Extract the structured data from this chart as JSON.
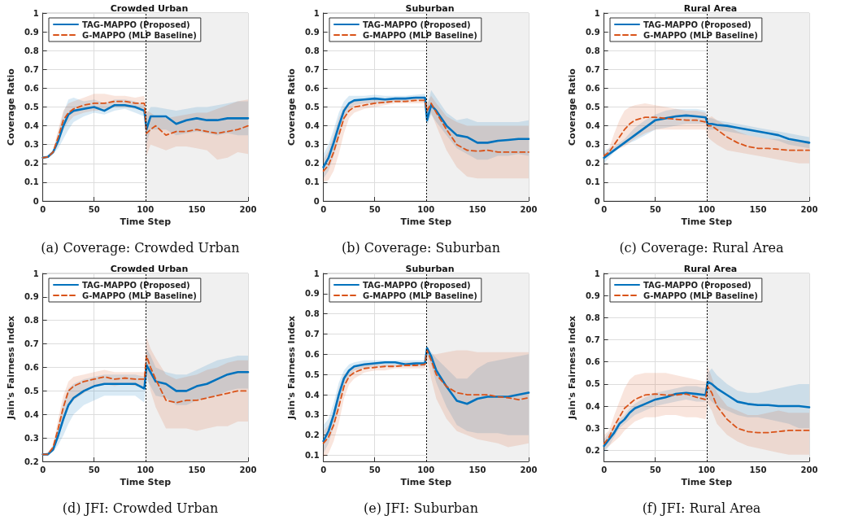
{
  "chart_data": [
    {
      "type": "line",
      "title": "Crowded Urban",
      "xlabel": "Time Step",
      "ylabel": "Coverage Ratio",
      "annotations": [
        "(a) Coverage: Crowded Urban"
      ],
      "xlim": [
        0,
        200
      ],
      "xticks": [
        0,
        50,
        100,
        150,
        200
      ],
      "ylim": [
        0,
        1
      ],
      "yticks": [
        0,
        0.1,
        0.2,
        0.3,
        0.4,
        0.5,
        0.6,
        0.7,
        0.8,
        0.9,
        1
      ],
      "grid": true,
      "legend": "top left",
      "marker": "none",
      "x": [
        0,
        5,
        10,
        15,
        20,
        25,
        30,
        40,
        50,
        60,
        70,
        80,
        90,
        99,
        101,
        105,
        110,
        120,
        130,
        140,
        150,
        160,
        170,
        180,
        190,
        200
      ],
      "ref_lines": [
        {
          "axis": "x",
          "value": 100,
          "color": "#000000",
          "line_style": "dotted"
        }
      ],
      "bands": [
        {
          "axis": "x",
          "from": 100,
          "to": 200,
          "color": "#f0f0f0"
        }
      ],
      "series": [
        {
          "name": "TAG-MAPPO (Proposed)",
          "color": "#0072bd",
          "line_style": "solid",
          "values": [
            0.23,
            0.235,
            0.26,
            0.32,
            0.4,
            0.46,
            0.48,
            0.49,
            0.5,
            0.48,
            0.51,
            0.51,
            0.5,
            0.48,
            0.38,
            0.45,
            0.45,
            0.45,
            0.41,
            0.43,
            0.44,
            0.43,
            0.43,
            0.44,
            0.44,
            0.44
          ],
          "lower": [
            0.23,
            0.23,
            0.25,
            0.28,
            0.33,
            0.38,
            0.42,
            0.45,
            0.47,
            0.46,
            0.48,
            0.49,
            0.47,
            0.45,
            0.3,
            0.38,
            0.38,
            0.38,
            0.35,
            0.36,
            0.37,
            0.36,
            0.35,
            0.36,
            0.35,
            0.35
          ],
          "upper": [
            0.23,
            0.24,
            0.27,
            0.36,
            0.47,
            0.54,
            0.55,
            0.53,
            0.54,
            0.52,
            0.54,
            0.54,
            0.53,
            0.51,
            0.46,
            0.5,
            0.5,
            0.49,
            0.48,
            0.49,
            0.5,
            0.5,
            0.51,
            0.52,
            0.53,
            0.53
          ]
        },
        {
          "name": "G-MAPPO (MLP Baseline)",
          "color": "#d95319",
          "line_style": "dashed",
          "values": [
            0.23,
            0.235,
            0.26,
            0.34,
            0.43,
            0.47,
            0.49,
            0.51,
            0.52,
            0.52,
            0.53,
            0.53,
            0.52,
            0.52,
            0.36,
            0.38,
            0.4,
            0.35,
            0.37,
            0.37,
            0.38,
            0.37,
            0.36,
            0.37,
            0.38,
            0.4
          ],
          "lower": [
            0.23,
            0.23,
            0.25,
            0.3,
            0.38,
            0.42,
            0.45,
            0.47,
            0.48,
            0.48,
            0.5,
            0.5,
            0.49,
            0.48,
            0.24,
            0.3,
            0.29,
            0.27,
            0.29,
            0.29,
            0.28,
            0.27,
            0.22,
            0.23,
            0.26,
            0.25
          ],
          "upper": [
            0.23,
            0.24,
            0.27,
            0.38,
            0.48,
            0.52,
            0.53,
            0.55,
            0.57,
            0.57,
            0.56,
            0.56,
            0.55,
            0.56,
            0.48,
            0.47,
            0.45,
            0.44,
            0.45,
            0.46,
            0.47,
            0.47,
            0.49,
            0.51,
            0.53,
            0.54
          ]
        }
      ]
    },
    {
      "type": "line",
      "title": "Suburban",
      "xlabel": "Time Step",
      "ylabel": "Coverage Ratio",
      "annotations": [
        "(b) Coverage: Suburban"
      ],
      "xlim": [
        0,
        200
      ],
      "xticks": [
        0,
        50,
        100,
        150,
        200
      ],
      "ylim": [
        0,
        1
      ],
      "yticks": [
        0,
        0.1,
        0.2,
        0.3,
        0.4,
        0.5,
        0.6,
        0.7,
        0.8,
        0.9,
        1
      ],
      "grid": true,
      "legend": "top left",
      "marker": "none",
      "x": [
        0,
        5,
        10,
        15,
        20,
        25,
        30,
        40,
        50,
        60,
        70,
        80,
        90,
        99,
        101,
        105,
        110,
        120,
        130,
        140,
        150,
        160,
        170,
        180,
        190,
        200
      ],
      "ref_lines": [
        {
          "axis": "x",
          "value": 100,
          "color": "#000000",
          "line_style": "dotted"
        }
      ],
      "bands": [
        {
          "axis": "x",
          "from": 100,
          "to": 200,
          "color": "#f0f0f0"
        }
      ],
      "series": [
        {
          "name": "TAG-MAPPO (Proposed)",
          "color": "#0072bd",
          "line_style": "solid",
          "values": [
            0.18,
            0.23,
            0.31,
            0.4,
            0.48,
            0.52,
            0.535,
            0.54,
            0.545,
            0.54,
            0.545,
            0.545,
            0.55,
            0.55,
            0.43,
            0.51,
            0.48,
            0.4,
            0.35,
            0.34,
            0.31,
            0.31,
            0.32,
            0.325,
            0.33,
            0.33
          ],
          "lower": [
            0.12,
            0.16,
            0.24,
            0.33,
            0.43,
            0.48,
            0.51,
            0.52,
            0.52,
            0.52,
            0.53,
            0.53,
            0.54,
            0.53,
            0.4,
            0.46,
            0.42,
            0.35,
            0.28,
            0.25,
            0.22,
            0.22,
            0.24,
            0.24,
            0.25,
            0.24
          ],
          "upper": [
            0.25,
            0.3,
            0.38,
            0.47,
            0.53,
            0.56,
            0.56,
            0.56,
            0.565,
            0.56,
            0.56,
            0.56,
            0.565,
            0.57,
            0.5,
            0.59,
            0.55,
            0.47,
            0.43,
            0.44,
            0.42,
            0.42,
            0.42,
            0.42,
            0.42,
            0.43
          ]
        },
        {
          "name": "G-MAPPO (MLP Baseline)",
          "color": "#d95319",
          "line_style": "dashed",
          "values": [
            0.16,
            0.19,
            0.26,
            0.35,
            0.44,
            0.48,
            0.5,
            0.51,
            0.52,
            0.525,
            0.53,
            0.53,
            0.535,
            0.535,
            0.48,
            0.52,
            0.47,
            0.38,
            0.3,
            0.27,
            0.265,
            0.27,
            0.26,
            0.26,
            0.26,
            0.26
          ],
          "lower": [
            0.1,
            0.11,
            0.16,
            0.25,
            0.36,
            0.44,
            0.47,
            0.49,
            0.5,
            0.51,
            0.52,
            0.52,
            0.52,
            0.52,
            0.44,
            0.47,
            0.4,
            0.27,
            0.18,
            0.13,
            0.12,
            0.12,
            0.12,
            0.12,
            0.12,
            0.12
          ],
          "upper": [
            0.22,
            0.27,
            0.35,
            0.44,
            0.5,
            0.52,
            0.53,
            0.535,
            0.54,
            0.545,
            0.545,
            0.55,
            0.55,
            0.55,
            0.52,
            0.56,
            0.52,
            0.45,
            0.42,
            0.4,
            0.4,
            0.4,
            0.4,
            0.4,
            0.4,
            0.4
          ]
        }
      ]
    },
    {
      "type": "line",
      "title": "Rural Area",
      "xlabel": "Time Step",
      "ylabel": "Coverage Ratio",
      "annotations": [
        "(c) Coverage: Rural Area"
      ],
      "xlim": [
        0,
        200
      ],
      "xticks": [
        0,
        50,
        100,
        150,
        200
      ],
      "ylim": [
        0,
        1
      ],
      "yticks": [
        0,
        0.1,
        0.2,
        0.3,
        0.4,
        0.5,
        0.6,
        0.7,
        0.8,
        0.9,
        1
      ],
      "grid": true,
      "legend": "top left",
      "marker": "none",
      "x": [
        0,
        5,
        10,
        15,
        20,
        25,
        30,
        40,
        50,
        60,
        70,
        80,
        90,
        99,
        101,
        105,
        110,
        120,
        130,
        140,
        150,
        160,
        170,
        180,
        190,
        200
      ],
      "ref_lines": [
        {
          "axis": "x",
          "value": 100,
          "color": "#000000",
          "line_style": "dotted"
        }
      ],
      "bands": [
        {
          "axis": "x",
          "from": 100,
          "to": 200,
          "color": "#f0f0f0"
        }
      ],
      "series": [
        {
          "name": "TAG-MAPPO (Proposed)",
          "color": "#0072bd",
          "line_style": "solid",
          "values": [
            0.23,
            0.25,
            0.27,
            0.29,
            0.31,
            0.33,
            0.35,
            0.39,
            0.43,
            0.44,
            0.45,
            0.455,
            0.45,
            0.445,
            0.41,
            0.41,
            0.405,
            0.4,
            0.39,
            0.38,
            0.37,
            0.36,
            0.35,
            0.33,
            0.32,
            0.31
          ],
          "lower": [
            0.2,
            0.23,
            0.26,
            0.28,
            0.3,
            0.31,
            0.32,
            0.35,
            0.38,
            0.39,
            0.4,
            0.41,
            0.41,
            0.41,
            0.38,
            0.38,
            0.38,
            0.37,
            0.36,
            0.35,
            0.34,
            0.33,
            0.32,
            0.3,
            0.29,
            0.28
          ],
          "upper": [
            0.27,
            0.28,
            0.29,
            0.31,
            0.33,
            0.36,
            0.39,
            0.43,
            0.46,
            0.48,
            0.49,
            0.49,
            0.49,
            0.48,
            0.44,
            0.44,
            0.43,
            0.42,
            0.41,
            0.4,
            0.39,
            0.38,
            0.37,
            0.36,
            0.35,
            0.34
          ]
        },
        {
          "name": "G-MAPPO (MLP Baseline)",
          "color": "#d95319",
          "line_style": "dashed",
          "values": [
            0.24,
            0.26,
            0.3,
            0.34,
            0.38,
            0.41,
            0.43,
            0.445,
            0.445,
            0.44,
            0.435,
            0.43,
            0.43,
            0.42,
            0.4,
            0.4,
            0.38,
            0.34,
            0.31,
            0.29,
            0.28,
            0.28,
            0.275,
            0.27,
            0.27,
            0.27
          ],
          "lower": [
            0.23,
            0.25,
            0.27,
            0.28,
            0.29,
            0.31,
            0.33,
            0.36,
            0.38,
            0.38,
            0.38,
            0.38,
            0.38,
            0.38,
            0.34,
            0.32,
            0.3,
            0.27,
            0.26,
            0.25,
            0.24,
            0.23,
            0.22,
            0.21,
            0.2,
            0.2
          ],
          "upper": [
            0.25,
            0.28,
            0.36,
            0.43,
            0.48,
            0.5,
            0.51,
            0.52,
            0.51,
            0.5,
            0.49,
            0.48,
            0.48,
            0.47,
            0.44,
            0.45,
            0.43,
            0.4,
            0.37,
            0.35,
            0.34,
            0.33,
            0.33,
            0.32,
            0.32,
            0.32
          ]
        }
      ]
    },
    {
      "type": "line",
      "title": "Crowded Urban",
      "xlabel": "Time Step",
      "ylabel": "Jain's Fairness Index",
      "annotations": [
        "(d) JFI: Crowded Urban"
      ],
      "xlim": [
        0,
        200
      ],
      "xticks": [
        0,
        50,
        100,
        150,
        200
      ],
      "ylim": [
        0.2,
        1
      ],
      "yticks": [
        0.2,
        0.3,
        0.4,
        0.5,
        0.6,
        0.7,
        0.8,
        0.9,
        1
      ],
      "grid": true,
      "legend": "top left",
      "marker": "none",
      "x": [
        0,
        5,
        10,
        15,
        20,
        25,
        30,
        40,
        50,
        60,
        70,
        80,
        90,
        99,
        101,
        105,
        110,
        120,
        130,
        140,
        150,
        160,
        170,
        180,
        190,
        200
      ],
      "ref_lines": [
        {
          "axis": "x",
          "value": 100,
          "color": "#000000",
          "line_style": "dotted"
        }
      ],
      "bands": [
        {
          "axis": "x",
          "from": 100,
          "to": 200,
          "color": "#f0f0f0"
        }
      ],
      "series": [
        {
          "name": "TAG-MAPPO (Proposed)",
          "color": "#0072bd",
          "line_style": "solid",
          "values": [
            0.23,
            0.23,
            0.25,
            0.31,
            0.38,
            0.44,
            0.47,
            0.5,
            0.52,
            0.53,
            0.53,
            0.53,
            0.53,
            0.51,
            0.61,
            0.58,
            0.54,
            0.53,
            0.5,
            0.5,
            0.52,
            0.53,
            0.55,
            0.57,
            0.58,
            0.58
          ],
          "lower": [
            0.23,
            0.23,
            0.24,
            0.27,
            0.31,
            0.36,
            0.4,
            0.44,
            0.46,
            0.48,
            0.48,
            0.48,
            0.48,
            0.45,
            0.55,
            0.52,
            0.48,
            0.47,
            0.44,
            0.44,
            0.46,
            0.47,
            0.48,
            0.5,
            0.51,
            0.51
          ],
          "upper": [
            0.23,
            0.24,
            0.26,
            0.35,
            0.45,
            0.51,
            0.53,
            0.55,
            0.56,
            0.57,
            0.57,
            0.57,
            0.57,
            0.56,
            0.68,
            0.65,
            0.6,
            0.58,
            0.57,
            0.57,
            0.59,
            0.61,
            0.63,
            0.64,
            0.65,
            0.65
          ]
        },
        {
          "name": "G-MAPPO (MLP Baseline)",
          "color": "#d95319",
          "line_style": "dashed",
          "values": [
            0.23,
            0.23,
            0.26,
            0.34,
            0.43,
            0.5,
            0.52,
            0.54,
            0.55,
            0.56,
            0.55,
            0.555,
            0.55,
            0.55,
            0.65,
            0.6,
            0.55,
            0.46,
            0.45,
            0.46,
            0.46,
            0.47,
            0.48,
            0.49,
            0.5,
            0.5
          ],
          "lower": [
            0.23,
            0.23,
            0.25,
            0.3,
            0.37,
            0.43,
            0.46,
            0.49,
            0.52,
            0.53,
            0.52,
            0.53,
            0.52,
            0.52,
            0.58,
            0.5,
            0.43,
            0.34,
            0.34,
            0.34,
            0.33,
            0.34,
            0.35,
            0.35,
            0.37,
            0.37
          ],
          "upper": [
            0.23,
            0.24,
            0.27,
            0.38,
            0.48,
            0.54,
            0.56,
            0.57,
            0.58,
            0.59,
            0.58,
            0.58,
            0.58,
            0.58,
            0.73,
            0.68,
            0.64,
            0.57,
            0.55,
            0.56,
            0.57,
            0.59,
            0.6,
            0.62,
            0.63,
            0.63
          ]
        }
      ]
    },
    {
      "type": "line",
      "title": "Suburban",
      "xlabel": "Time Step",
      "ylabel": "Jain's Fairness Index",
      "annotations": [
        "(e) JFI: Suburban"
      ],
      "xlim": [
        0,
        200
      ],
      "xticks": [
        0,
        50,
        100,
        150,
        200
      ],
      "ylim": [
        0.07,
        1
      ],
      "yticks": [
        0.1,
        0.2,
        0.3,
        0.4,
        0.5,
        0.6,
        0.7,
        0.8,
        0.9,
        1
      ],
      "grid": true,
      "legend": "top left",
      "marker": "none",
      "x": [
        0,
        5,
        10,
        15,
        20,
        25,
        30,
        40,
        50,
        60,
        70,
        80,
        90,
        99,
        101,
        105,
        110,
        120,
        130,
        140,
        150,
        160,
        170,
        180,
        190,
        200
      ],
      "ref_lines": [
        {
          "axis": "x",
          "value": 100,
          "color": "#000000",
          "line_style": "dotted"
        }
      ],
      "bands": [
        {
          "axis": "x",
          "from": 100,
          "to": 200,
          "color": "#f0f0f0"
        }
      ],
      "series": [
        {
          "name": "TAG-MAPPO (Proposed)",
          "color": "#0072bd",
          "line_style": "solid",
          "values": [
            0.17,
            0.22,
            0.3,
            0.4,
            0.48,
            0.52,
            0.54,
            0.55,
            0.555,
            0.56,
            0.56,
            0.55,
            0.555,
            0.555,
            0.63,
            0.59,
            0.52,
            0.44,
            0.37,
            0.355,
            0.38,
            0.39,
            0.39,
            0.39,
            0.4,
            0.41
          ],
          "lower": [
            0.11,
            0.16,
            0.24,
            0.34,
            0.44,
            0.49,
            0.52,
            0.53,
            0.54,
            0.54,
            0.54,
            0.54,
            0.54,
            0.54,
            0.6,
            0.55,
            0.46,
            0.34,
            0.25,
            0.22,
            0.21,
            0.21,
            0.21,
            0.2,
            0.2,
            0.2
          ],
          "upper": [
            0.25,
            0.28,
            0.36,
            0.46,
            0.52,
            0.55,
            0.56,
            0.57,
            0.57,
            0.57,
            0.57,
            0.57,
            0.57,
            0.57,
            0.64,
            0.61,
            0.58,
            0.53,
            0.48,
            0.48,
            0.53,
            0.56,
            0.57,
            0.58,
            0.59,
            0.6
          ]
        },
        {
          "name": "G-MAPPO (MLP Baseline)",
          "color": "#d95319",
          "line_style": "dashed",
          "values": [
            0.16,
            0.19,
            0.25,
            0.34,
            0.44,
            0.49,
            0.51,
            0.53,
            0.535,
            0.54,
            0.54,
            0.545,
            0.545,
            0.55,
            0.62,
            0.57,
            0.5,
            0.44,
            0.41,
            0.4,
            0.4,
            0.4,
            0.39,
            0.385,
            0.375,
            0.385
          ],
          "lower": [
            0.09,
            0.11,
            0.17,
            0.26,
            0.38,
            0.45,
            0.48,
            0.51,
            0.52,
            0.52,
            0.53,
            0.53,
            0.53,
            0.53,
            0.58,
            0.48,
            0.38,
            0.28,
            0.22,
            0.2,
            0.18,
            0.17,
            0.16,
            0.14,
            0.15,
            0.16
          ],
          "upper": [
            0.22,
            0.25,
            0.32,
            0.43,
            0.5,
            0.52,
            0.54,
            0.55,
            0.55,
            0.55,
            0.55,
            0.56,
            0.56,
            0.56,
            0.64,
            0.6,
            0.6,
            0.61,
            0.62,
            0.62,
            0.61,
            0.61,
            0.61,
            0.61,
            0.61,
            0.61
          ]
        }
      ]
    },
    {
      "type": "line",
      "title": "Rural Area",
      "xlabel": "Time Step",
      "ylabel": "Jain's Fairness Index",
      "annotations": [
        "(f) JFI: Rural Area"
      ],
      "xlim": [
        0,
        200
      ],
      "xticks": [
        0,
        50,
        100,
        150,
        200
      ],
      "ylim": [
        0.15,
        1
      ],
      "yticks": [
        0.2,
        0.3,
        0.4,
        0.5,
        0.6,
        0.7,
        0.8,
        0.9,
        1
      ],
      "grid": true,
      "legend": "top left",
      "marker": "none",
      "x": [
        0,
        5,
        10,
        15,
        20,
        25,
        30,
        40,
        50,
        60,
        70,
        80,
        90,
        99,
        101,
        105,
        110,
        120,
        130,
        140,
        150,
        160,
        170,
        180,
        190,
        200
      ],
      "ref_lines": [
        {
          "axis": "x",
          "value": 100,
          "color": "#000000",
          "line_style": "dotted"
        }
      ],
      "bands": [
        {
          "axis": "x",
          "from": 100,
          "to": 200,
          "color": "#f0f0f0"
        }
      ],
      "series": [
        {
          "name": "TAG-MAPPO (Proposed)",
          "color": "#0072bd",
          "line_style": "solid",
          "values": [
            0.22,
            0.25,
            0.28,
            0.32,
            0.34,
            0.37,
            0.39,
            0.41,
            0.43,
            0.44,
            0.455,
            0.46,
            0.455,
            0.45,
            0.51,
            0.5,
            0.48,
            0.45,
            0.42,
            0.41,
            0.405,
            0.405,
            0.4,
            0.4,
            0.4,
            0.395
          ],
          "lower": [
            0.19,
            0.22,
            0.26,
            0.3,
            0.32,
            0.34,
            0.36,
            0.38,
            0.4,
            0.41,
            0.42,
            0.43,
            0.42,
            0.42,
            0.44,
            0.42,
            0.4,
            0.38,
            0.36,
            0.35,
            0.35,
            0.34,
            0.33,
            0.32,
            0.3,
            0.3
          ],
          "upper": [
            0.25,
            0.28,
            0.3,
            0.34,
            0.36,
            0.39,
            0.41,
            0.44,
            0.46,
            0.47,
            0.48,
            0.49,
            0.49,
            0.48,
            0.55,
            0.57,
            0.54,
            0.5,
            0.47,
            0.46,
            0.46,
            0.47,
            0.48,
            0.49,
            0.5,
            0.5
          ]
        },
        {
          "name": "G-MAPPO (MLP Baseline)",
          "color": "#d95319",
          "line_style": "dashed",
          "values": [
            0.23,
            0.26,
            0.31,
            0.35,
            0.39,
            0.41,
            0.43,
            0.45,
            0.455,
            0.45,
            0.45,
            0.455,
            0.44,
            0.43,
            0.49,
            0.46,
            0.4,
            0.34,
            0.3,
            0.285,
            0.28,
            0.28,
            0.285,
            0.29,
            0.29,
            0.29
          ],
          "lower": [
            0.2,
            0.22,
            0.24,
            0.26,
            0.29,
            0.31,
            0.33,
            0.35,
            0.35,
            0.36,
            0.36,
            0.35,
            0.35,
            0.34,
            0.41,
            0.38,
            0.32,
            0.27,
            0.24,
            0.22,
            0.21,
            0.2,
            0.19,
            0.18,
            0.18,
            0.18
          ],
          "upper": [
            0.27,
            0.29,
            0.36,
            0.42,
            0.48,
            0.52,
            0.54,
            0.55,
            0.55,
            0.55,
            0.54,
            0.53,
            0.52,
            0.51,
            0.58,
            0.53,
            0.46,
            0.4,
            0.38,
            0.36,
            0.36,
            0.37,
            0.38,
            0.37,
            0.37,
            0.37
          ]
        }
      ]
    }
  ]
}
